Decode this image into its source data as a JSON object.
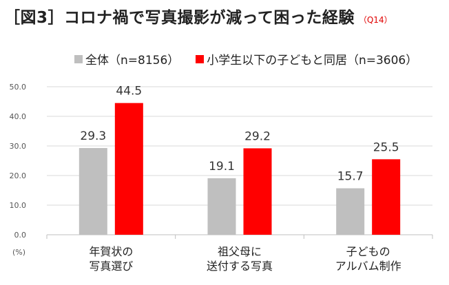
{
  "header": {
    "title": "［図3］コロナ禍で写真撮影が減って困った経験",
    "question": "（Q14）"
  },
  "chart_data": {
    "type": "bar",
    "categories": [
      [
        "年賀状の",
        "写真選び"
      ],
      [
        "祖父母に",
        "送付する写真"
      ],
      [
        "子どもの",
        "アルバム制作"
      ]
    ],
    "series": [
      {
        "name": "全体（n=8156）",
        "values": [
          29.3,
          19.1,
          15.7
        ],
        "color": "#bfbfbf"
      },
      {
        "name": "小学生以下の子どもと同居（n=3606）",
        "values": [
          44.5,
          29.2,
          25.5
        ],
        "color": "#ff0000"
      }
    ],
    "ylim": [
      0,
      50
    ],
    "yticks": [
      "0.0",
      "10.0",
      "20.0",
      "30.0",
      "40.0",
      "50.0"
    ],
    "ylabel": "(%)",
    "grid": true,
    "legend_position": "top"
  }
}
